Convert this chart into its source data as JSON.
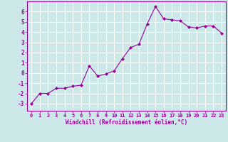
{
  "x": [
    0,
    1,
    2,
    3,
    4,
    5,
    6,
    7,
    8,
    9,
    10,
    11,
    12,
    13,
    14,
    15,
    16,
    17,
    18,
    19,
    20,
    21,
    22,
    23
  ],
  "y": [
    -3.0,
    -2.0,
    -2.0,
    -1.5,
    -1.5,
    -1.3,
    -1.2,
    0.7,
    -0.3,
    -0.1,
    0.2,
    1.4,
    2.5,
    2.8,
    4.8,
    6.5,
    5.3,
    5.2,
    5.1,
    4.5,
    4.4,
    4.6,
    4.6,
    3.9
  ],
  "line_color": "#990099",
  "marker": "D",
  "marker_size": 2.0,
  "bg_color": "#cce8e8",
  "grid_color": "#ffffff",
  "xlabel": "Windchill (Refroidissement éolien,°C)",
  "ylabel_ticks": [
    -3,
    -2,
    -1,
    0,
    1,
    2,
    3,
    4,
    5,
    6
  ],
  "xlim": [
    -0.5,
    23.5
  ],
  "ylim": [
    -3.7,
    7.0
  ],
  "tick_color": "#990099",
  "label_color": "#990099",
  "tick_fontsize": 5.0,
  "xlabel_fontsize": 5.5,
  "ylabel_fontsize": 5.5
}
